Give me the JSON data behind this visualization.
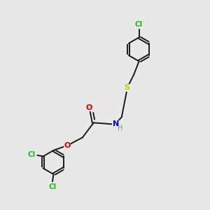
{
  "bg_color": "#e8e8e8",
  "bond_color": "#1a1a1a",
  "atom_colors": {
    "Cl": "#22bb22",
    "S": "#cccc00",
    "N": "#0000cc",
    "H": "#888888",
    "O": "#cc0000"
  },
  "ring_r": 0.58,
  "lw": 1.4,
  "figsize": [
    3.0,
    3.0
  ],
  "dpi": 100
}
